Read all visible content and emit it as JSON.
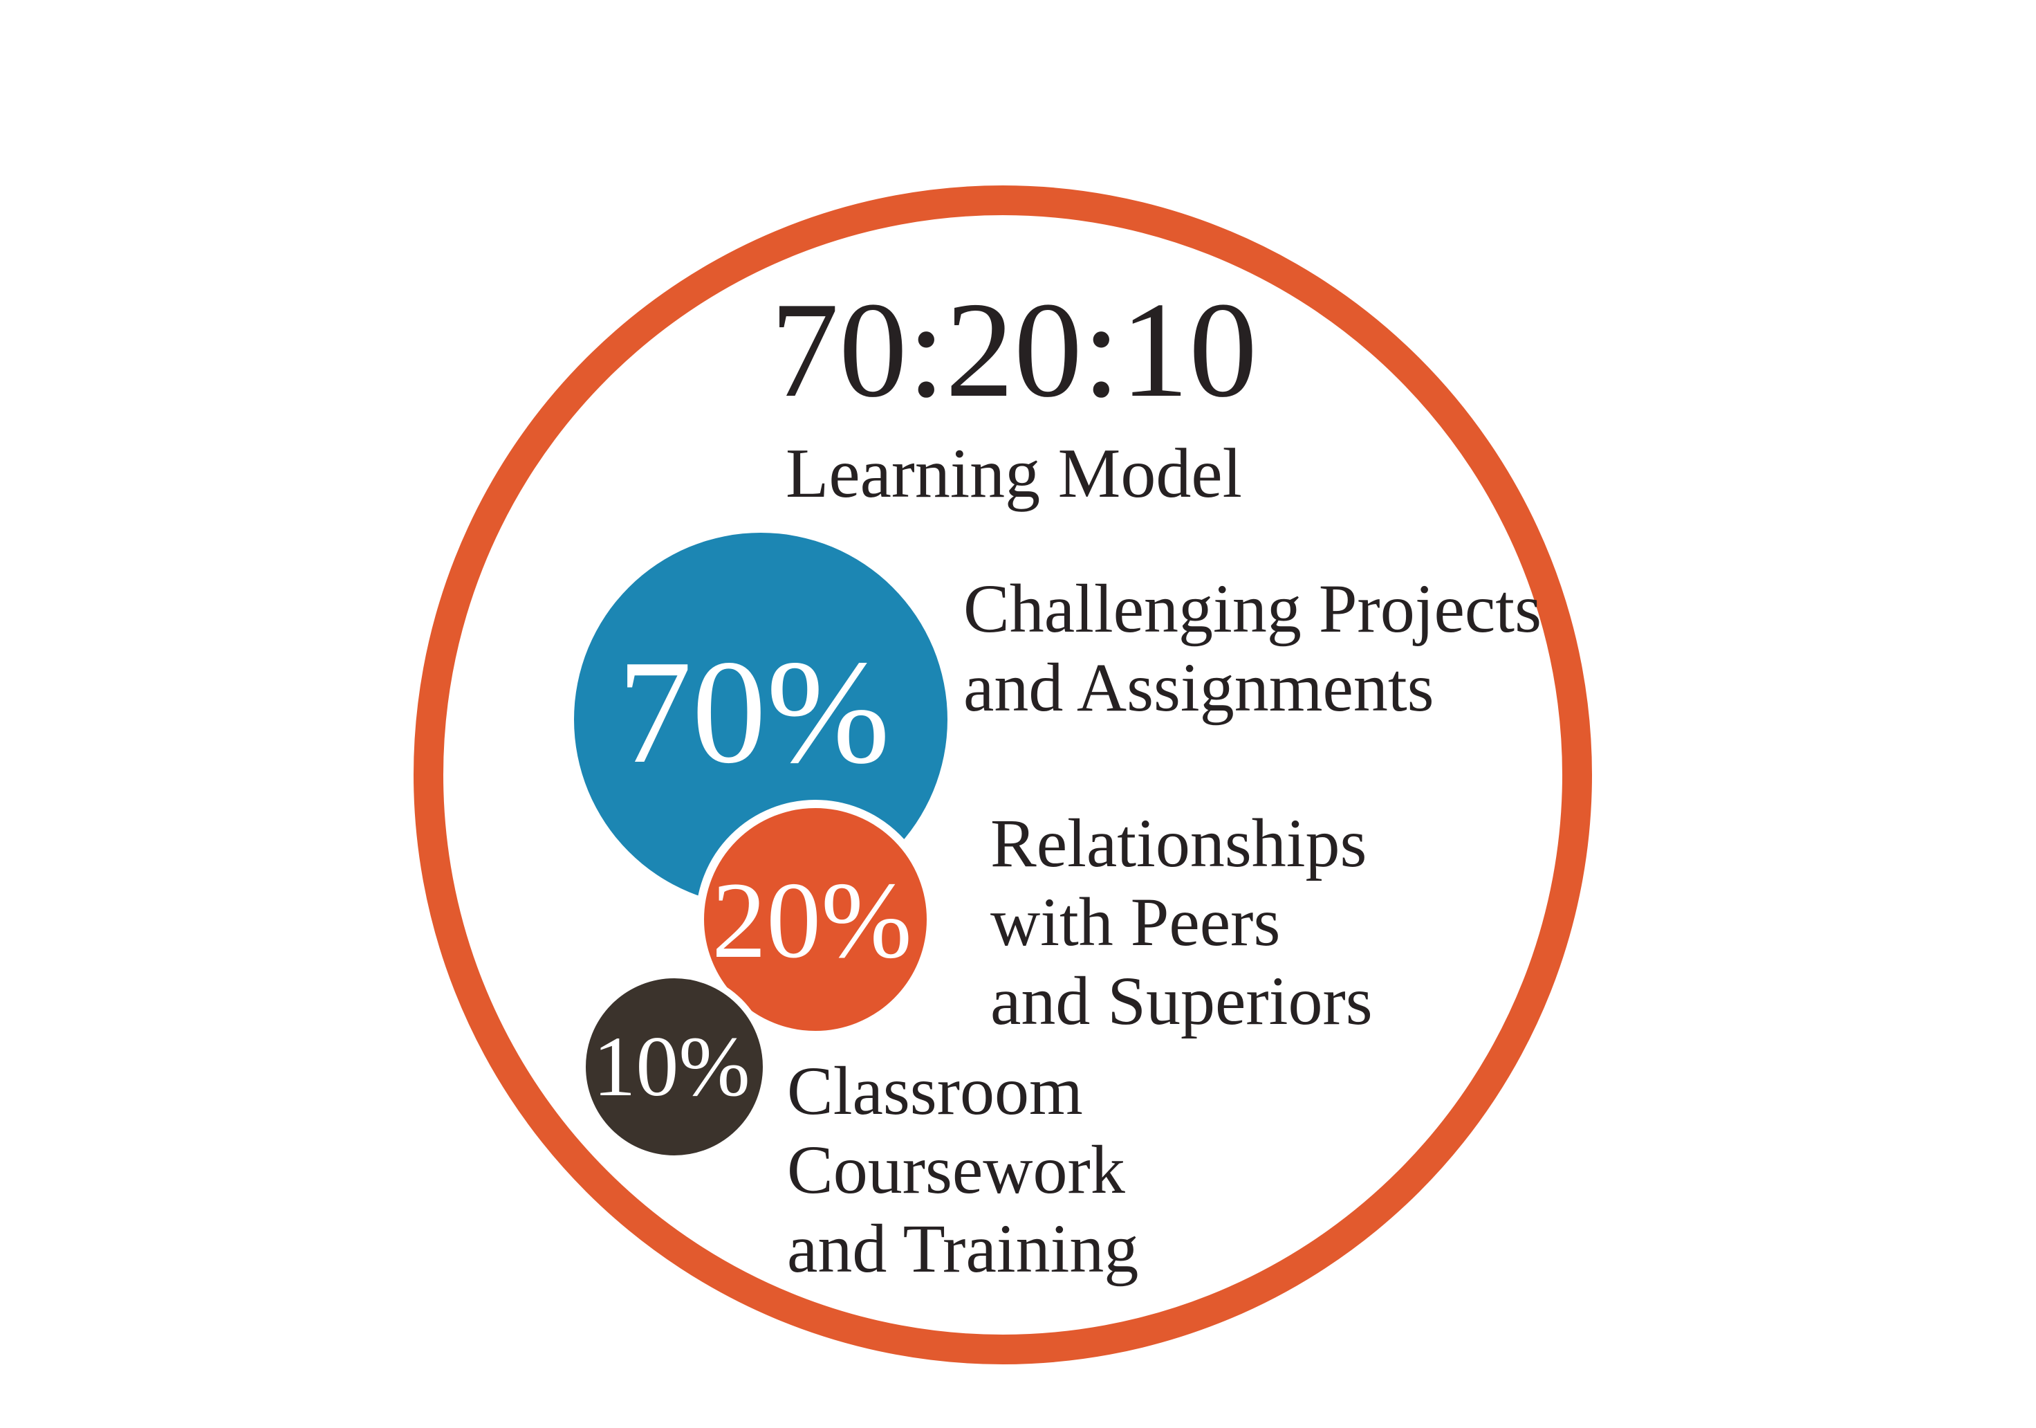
{
  "title": "70:20:10",
  "subtitle": "Learning Model",
  "ring_color": "#E25A2E",
  "text_color": "#262122",
  "segments": [
    {
      "percent": "70%",
      "color": "#1C86B3",
      "lines": [
        "Challenging Projects",
        "and Assignments"
      ]
    },
    {
      "percent": "20%",
      "color": "#E2562D",
      "lines": [
        "Relationships",
        "with Peers",
        "and Superiors"
      ]
    },
    {
      "percent": "10%",
      "color": "#3B332C",
      "lines": [
        "Classroom",
        "Coursework",
        "and Training"
      ]
    }
  ]
}
